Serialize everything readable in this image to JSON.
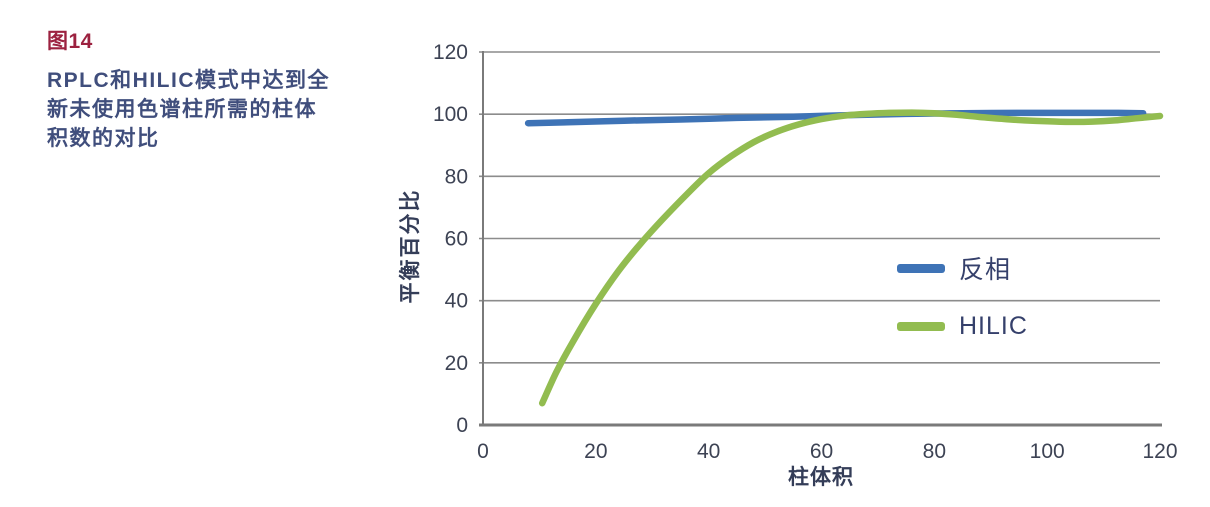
{
  "figure": {
    "label": "图14",
    "label_color": "#9C2240",
    "caption_color": "#404E7C",
    "caption_lines": [
      "RPLC和HILIC模式中达到全",
      "新未使用色谱柱所需的柱体",
      "积数的对比"
    ]
  },
  "chart_data": {
    "type": "line",
    "title": "",
    "xlabel": "柱体积",
    "ylabel": "平衡百分比",
    "xlim": [
      0,
      120
    ],
    "ylim": [
      0,
      120
    ],
    "x_ticks": [
      0,
      20,
      40,
      60,
      80,
      100,
      120
    ],
    "y_ticks": [
      0,
      20,
      40,
      60,
      80,
      100,
      120
    ],
    "grid": "horizontal",
    "grid_color": "#8C8C8C",
    "axis_color": "#7A7A7A",
    "legend_position": "inside-right",
    "series": [
      {
        "name": "反相",
        "color": "#3E73B6",
        "points": [
          [
            8,
            97.1
          ],
          [
            15,
            97.4
          ],
          [
            25,
            97.9
          ],
          [
            35,
            98.3
          ],
          [
            45,
            98.8
          ],
          [
            55,
            99.2
          ],
          [
            65,
            99.7
          ],
          [
            75,
            100.1
          ],
          [
            85,
            100.3
          ],
          [
            95,
            100.4
          ],
          [
            105,
            100.4
          ],
          [
            112,
            100.4
          ],
          [
            117,
            100.3
          ]
        ]
      },
      {
        "name": "HILIC",
        "color": "#92BC50",
        "points": [
          [
            10.5,
            7
          ],
          [
            13,
            17
          ],
          [
            16,
            27
          ],
          [
            20,
            39
          ],
          [
            24,
            49.5
          ],
          [
            28,
            58.5
          ],
          [
            32,
            66.5
          ],
          [
            36,
            74
          ],
          [
            40,
            81
          ],
          [
            44,
            86.5
          ],
          [
            48,
            91
          ],
          [
            52,
            94.3
          ],
          [
            56,
            96.7
          ],
          [
            60,
            98.4
          ],
          [
            64,
            99.5
          ],
          [
            68,
            100.1
          ],
          [
            72,
            100.4
          ],
          [
            76,
            100.5
          ],
          [
            80,
            100.3
          ],
          [
            84,
            99.8
          ],
          [
            88,
            99.1
          ],
          [
            92,
            98.5
          ],
          [
            96,
            98
          ],
          [
            100,
            97.7
          ],
          [
            104,
            97.5
          ],
          [
            108,
            97.6
          ],
          [
            112,
            98
          ],
          [
            116,
            98.7
          ],
          [
            120,
            99.4
          ]
        ]
      }
    ]
  }
}
